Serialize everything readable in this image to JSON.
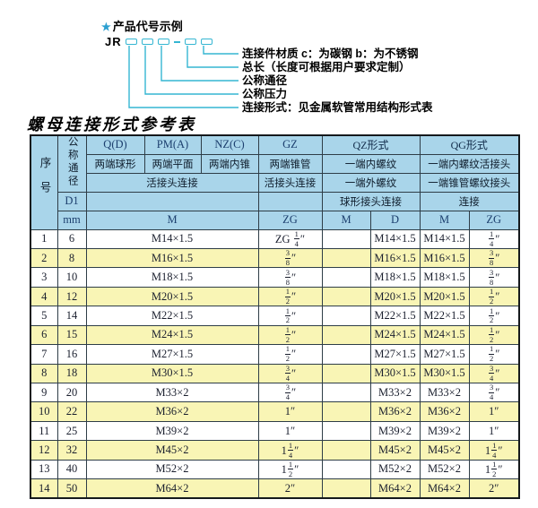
{
  "diagram": {
    "star": "★",
    "title": "产品代号示例",
    "prefix": "JR",
    "dash": "-",
    "labels": [
      "连接件材质  c：为碳钢  b：为不锈钢",
      "总长（长度可根据用户要求定制）",
      "公称通径",
      "公称压力",
      "连接形式：见金属软管常用结构形式表"
    ]
  },
  "table_title": "螺母连接形式参考表",
  "table": {
    "header": {
      "seq": "序号",
      "diameter": "公称通径",
      "d1": "D1",
      "mm": "mm",
      "col_q": "Q(D)",
      "col_pm": "PM(A)",
      "col_nz": "NZ(C)",
      "col_gz": "GZ",
      "col_qz": "QZ形式",
      "col_qg": "QG形式",
      "q_desc": "两端球形",
      "pm_desc": "两端平面",
      "nz_desc": "两端内锥",
      "gz_desc": "两端锥管",
      "qz_desc1": "一端内螺纹",
      "qg_desc1": "一端内螺纹活接头",
      "union_conn": "活接头连接",
      "gz_conn": "活接头连接",
      "qz_desc2": "一端外螺纹",
      "qg_desc2": "一端锥管螺纹接头",
      "qz_conn": "球形接头连接",
      "qg_conn": "连接",
      "m": "M",
      "zg": "ZG",
      "qz_m": "M",
      "qz_d": "D",
      "qg_m": "M",
      "qg_zg": "ZG"
    },
    "rows": [
      {
        "no": "1",
        "mm": "6",
        "m": "M14×1.5",
        "gz": "ZG {1/4}″",
        "qz_m": "",
        "qz_d": "M14×1.5",
        "qg_m": "M14×1.5",
        "qg_zg": "{1/4}″"
      },
      {
        "no": "2",
        "mm": "8",
        "m": "M16×1.5",
        "gz": "{3/8}″",
        "qz_m": "",
        "qz_d": "M16×1.5",
        "qg_m": "M16×1.5",
        "qg_zg": "{3/8}″"
      },
      {
        "no": "3",
        "mm": "10",
        "m": "M18×1.5",
        "gz": "{3/8}″",
        "qz_m": "",
        "qz_d": "M18×1.5",
        "qg_m": "M18×1.5",
        "qg_zg": "{3/8}″"
      },
      {
        "no": "4",
        "mm": "12",
        "m": "M20×1.5",
        "gz": "{1/2}″",
        "qz_m": "",
        "qz_d": "M20×1.5",
        "qg_m": "M20×1.5",
        "qg_zg": "{1/2}″"
      },
      {
        "no": "5",
        "mm": "14",
        "m": "M22×1.5",
        "gz": "{1/2}″",
        "qz_m": "",
        "qz_d": "M22×1.5",
        "qg_m": "M22×1.5",
        "qg_zg": "{1/2}″"
      },
      {
        "no": "6",
        "mm": "15",
        "m": "M24×1.5",
        "gz": "{1/2}″",
        "qz_m": "",
        "qz_d": "M24×1.5",
        "qg_m": "M24×1.5",
        "qg_zg": "{1/2}″"
      },
      {
        "no": "7",
        "mm": "16",
        "m": "M27×1.5",
        "gz": "{1/2}″",
        "qz_m": "",
        "qz_d": "M27×1.5",
        "qg_m": "M27×1.5",
        "qg_zg": "{1/2}″"
      },
      {
        "no": "8",
        "mm": "18",
        "m": "M30×1.5",
        "gz": "{3/4}″",
        "qz_m": "",
        "qz_d": "M30×1.5",
        "qg_m": "M30×1.5",
        "qg_zg": "{3/4}″"
      },
      {
        "no": "9",
        "mm": "20",
        "m": "M33×2",
        "gz": "{3/4}″",
        "qz_m": "",
        "qz_d": "M33×2",
        "qg_m": "M33×2",
        "qg_zg": "{3/4}″"
      },
      {
        "no": "10",
        "mm": "22",
        "m": "M36×2",
        "gz": "1″",
        "qz_m": "",
        "qz_d": "M36×2",
        "qg_m": "M36×2",
        "qg_zg": "1″"
      },
      {
        "no": "11",
        "mm": "25",
        "m": "M39×2",
        "gz": "1″",
        "qz_m": "",
        "qz_d": "M39×2",
        "qg_m": "M39×2",
        "qg_zg": "1″"
      },
      {
        "no": "12",
        "mm": "32",
        "m": "M45×2",
        "gz": "1{1/4}″",
        "qz_m": "",
        "qz_d": "M45×2",
        "qg_m": "M45×2",
        "qg_zg": "1{1/4}″"
      },
      {
        "no": "13",
        "mm": "40",
        "m": "M52×2",
        "gz": "1{1/2}″",
        "qz_m": "",
        "qz_d": "M52×2",
        "qg_m": "M52×2",
        "qg_zg": "1{1/2}″"
      },
      {
        "no": "14",
        "mm": "50",
        "m": "M64×2",
        "gz": "2″",
        "qz_m": "",
        "qz_d": "M64×2",
        "qg_m": "M64×2",
        "qg_zg": "2″"
      }
    ]
  },
  "colors": {
    "accent_cyan": "#35b6d2",
    "star_blue": "#2b9fd0",
    "header_blue": "#a9d5ea",
    "row_yellow": "#f9f5b5",
    "table_border": "#2e3d47",
    "outer_border": "#15191c",
    "latin_header_text": "#1c3f6e"
  }
}
